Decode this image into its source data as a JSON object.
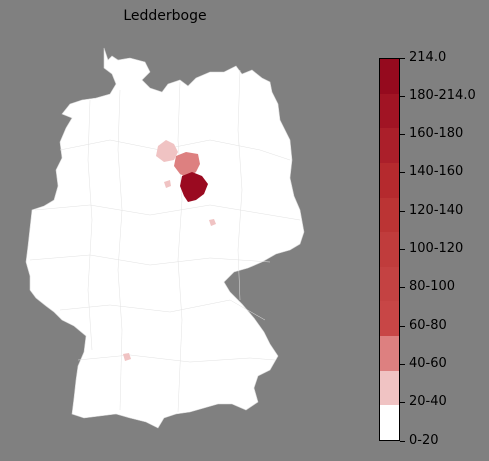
{
  "map": {
    "title": "Ledderboge",
    "highlighted_regions": [
      {
        "region": "northern-lowlands-west",
        "class": "20-40",
        "color": "#f0c3c3"
      },
      {
        "region": "northern-lowlands-east",
        "class": "40-60",
        "color": "#dd8080"
      },
      {
        "region": "central-north",
        "class": "200-214",
        "color": "#9a0a20"
      },
      {
        "region": "central-small",
        "class": "20-40",
        "color": "#f0c3c3"
      },
      {
        "region": "east-small",
        "class": "20-40",
        "color": "#f0c3c3"
      },
      {
        "region": "southwest-small",
        "class": "20-40",
        "color": "#f0c3c3"
      }
    ]
  },
  "legend": {
    "labels": [
      "0-20",
      "20-40",
      "40-60",
      "60-80",
      "80-100",
      "100-120",
      "120-140",
      "140-160",
      "160-180",
      "180-214.0",
      "214.0"
    ],
    "bands": [
      "#ffffff",
      "#f0c3c3",
      "#dd8080",
      "#c84646",
      "#c44242",
      "#c03c3c",
      "#bb3434",
      "#b52a2e",
      "#ab1f2a",
      "#a11424",
      "#950a1e"
    ]
  }
}
